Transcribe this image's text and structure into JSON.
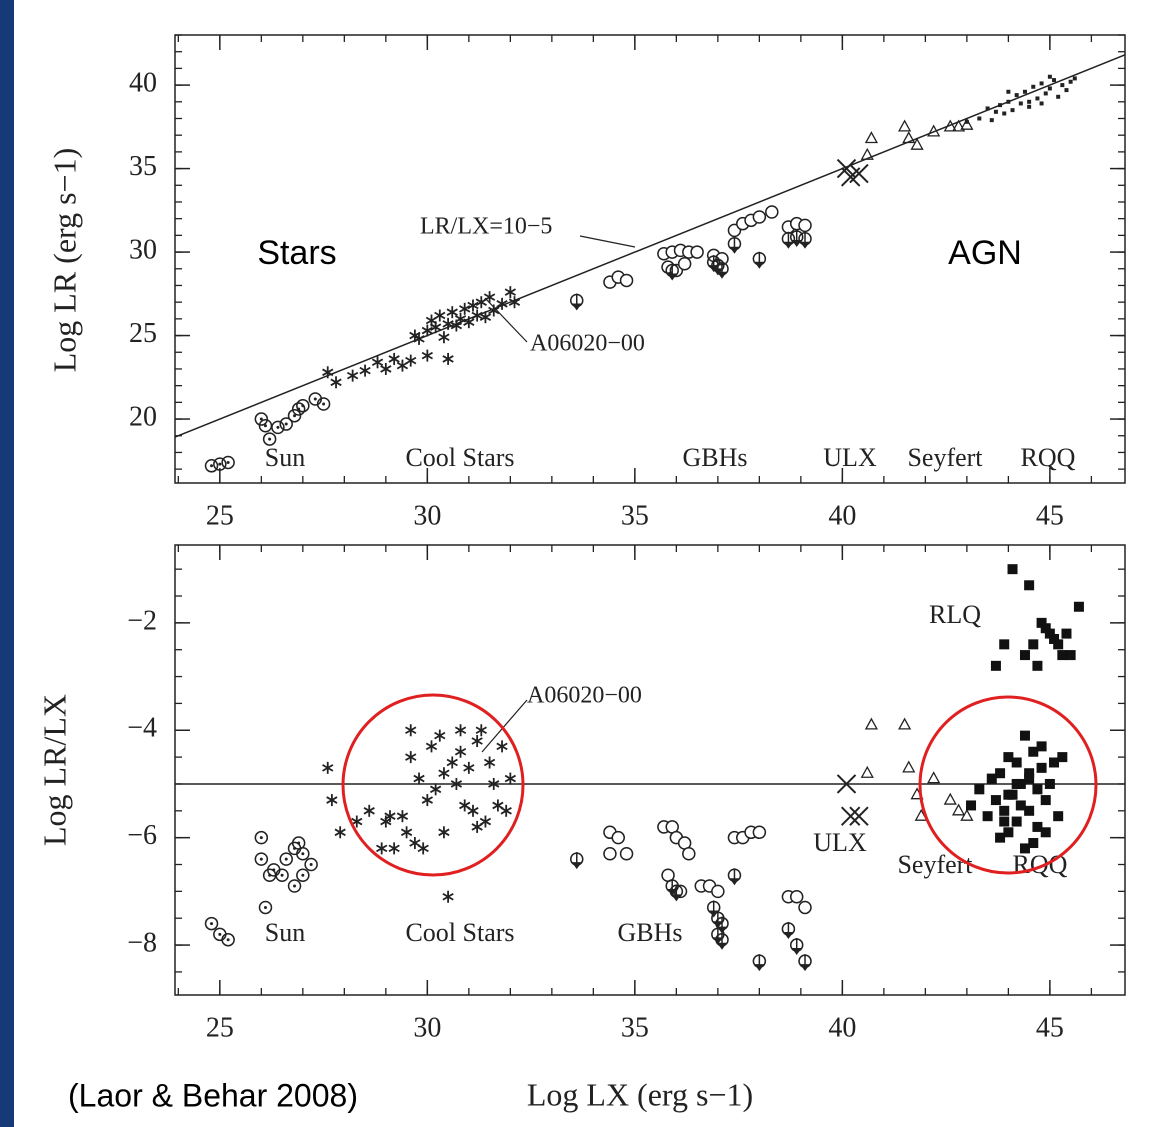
{
  "caption": "(Laor & Behar 2008)",
  "chart_data": [
    {
      "type": "scatter",
      "ylabel": "Log LR (erg s−1)",
      "xlim": [
        23.92,
        46.81
      ],
      "xticks": [
        25,
        30,
        35,
        40,
        45
      ],
      "xminor_step": 1,
      "ylim": [
        16.17,
        43.0
      ],
      "yticks": [
        20,
        25,
        30,
        35,
        40
      ],
      "yminor_step": 1,
      "reference_log_ratio": -5,
      "annotations": [
        "LR/LX=10−5",
        "A06020−00",
        "Stars",
        "AGN"
      ],
      "series": [
        {
          "name": "Sun",
          "marker": "circle-dot",
          "x": [
            24.8,
            25.0,
            25.2,
            26.0,
            26.1,
            26.2,
            26.4,
            26.6,
            26.8,
            26.9,
            27.0,
            27.3,
            27.5
          ],
          "values": [
            17.2,
            17.3,
            17.4,
            20.0,
            19.6,
            18.8,
            19.5,
            19.7,
            20.2,
            20.6,
            20.8,
            21.2,
            20.9
          ]
        },
        {
          "name": "Cool Stars",
          "marker": "asterisk",
          "x": [
            27.6,
            27.8,
            28.2,
            28.5,
            28.8,
            29.0,
            29.2,
            29.4,
            29.6,
            29.8,
            30.0,
            30.1,
            30.2,
            30.3,
            30.4,
            30.5,
            30.6,
            30.7,
            30.8,
            30.9,
            31.0,
            31.1,
            31.2,
            31.3,
            31.4,
            31.5,
            31.6,
            31.8,
            32.0,
            32.1,
            29.7,
            30.0,
            30.5
          ],
          "values": [
            22.8,
            22.2,
            22.6,
            22.9,
            23.4,
            23.0,
            23.6,
            23.2,
            23.5,
            24.8,
            25.3,
            25.9,
            25.5,
            26.2,
            24.9,
            23.6,
            26.4,
            25.6,
            26.0,
            26.6,
            25.8,
            26.8,
            26.2,
            27.0,
            26.1,
            27.3,
            26.5,
            26.9,
            27.6,
            27.0,
            25.0,
            23.8,
            25.7
          ]
        },
        {
          "name": "GBHs",
          "marker": "circle",
          "x": [
            34.4,
            34.6,
            34.8,
            35.7,
            35.9,
            36.1,
            36.3,
            36.5,
            36.9,
            37.1,
            37.4,
            37.6,
            37.8,
            38.0,
            38.3,
            38.7,
            38.9,
            39.1,
            35.8,
            36.0,
            36.2
          ],
          "values": [
            28.2,
            28.5,
            28.3,
            29.9,
            30.0,
            30.1,
            30.0,
            30.0,
            29.8,
            29.6,
            31.3,
            31.7,
            31.9,
            32.1,
            32.4,
            31.5,
            31.7,
            31.6,
            29.1,
            28.9,
            29.3
          ]
        },
        {
          "marker": "circle-limit",
          "x": [
            33.6,
            35.9,
            36.9,
            37.0,
            37.1,
            37.4,
            38.0,
            38.7,
            38.9,
            39.1
          ],
          "values": [
            27.1,
            28.9,
            29.4,
            29.2,
            29.0,
            30.5,
            29.6,
            30.8,
            30.9,
            30.8
          ]
        },
        {
          "name": "ULX",
          "marker": "x",
          "x": [
            40.1,
            40.2,
            40.4
          ],
          "values": [
            35.0,
            34.5,
            34.7
          ]
        },
        {
          "name": "Seyfert",
          "marker": "triangle",
          "x": [
            40.7,
            40.6,
            41.5,
            41.6,
            41.8,
            42.2,
            42.6,
            42.8,
            43.0
          ],
          "values": [
            36.8,
            35.8,
            37.5,
            36.8,
            36.4,
            37.2,
            37.5,
            37.5,
            37.6
          ]
        },
        {
          "name": "RQQ",
          "marker": "small-square",
          "x": [
            43.0,
            43.3,
            43.5,
            43.6,
            43.8,
            43.9,
            44.0,
            44.1,
            44.2,
            44.3,
            44.4,
            44.5,
            44.6,
            44.7,
            44.8,
            44.9,
            45.0,
            45.1,
            45.2,
            45.3,
            45.4,
            45.5,
            45.6,
            44.0,
            44.5,
            44.8,
            45.0,
            43.7
          ],
          "values": [
            37.8,
            38.0,
            38.6,
            37.9,
            38.8,
            38.3,
            39.0,
            38.5,
            39.4,
            38.9,
            39.6,
            39.0,
            39.9,
            39.2,
            40.1,
            39.5,
            39.8,
            40.3,
            39.3,
            40.0,
            39.7,
            40.2,
            40.4,
            39.6,
            38.7,
            38.9,
            40.5,
            38.4
          ]
        }
      ]
    },
    {
      "type": "scatter",
      "ylabel": "Log LR/LX",
      "xlabel": "Log LX (erg s−1)",
      "xlim": [
        23.92,
        46.81
      ],
      "xticks": [
        25,
        30,
        35,
        40,
        45
      ],
      "xminor_step": 1,
      "ylim": [
        -8.93,
        -0.55
      ],
      "yticks": [
        {
          "value": -8,
          "label": "−8"
        },
        {
          "value": -6,
          "label": "−6"
        },
        {
          "value": -4,
          "label": "−4"
        },
        {
          "value": -2,
          "label": "−2"
        }
      ],
      "yminor_step": 0.5,
      "reference_log_ratio": -5,
      "annotations": [
        "A06020−00"
      ],
      "series": [
        {
          "name": "Sun",
          "marker": "circle-dot",
          "x": [
            24.8,
            25.0,
            25.2,
            26.0,
            26.0,
            26.1,
            26.2,
            26.3,
            26.5,
            26.6,
            26.8,
            26.9,
            27.0,
            27.0,
            27.2,
            26.8
          ],
          "values": [
            -7.6,
            -7.8,
            -7.9,
            -6.0,
            -6.4,
            -7.3,
            -6.7,
            -6.6,
            -6.7,
            -6.4,
            -6.9,
            -6.1,
            -6.7,
            -6.3,
            -6.5,
            -6.2
          ]
        },
        {
          "name": "Cool Stars",
          "marker": "asterisk",
          "x": [
            27.6,
            27.7,
            27.9,
            28.3,
            28.6,
            28.9,
            29.0,
            29.2,
            29.4,
            29.5,
            29.6,
            29.7,
            29.8,
            29.9,
            30.0,
            30.1,
            30.2,
            30.3,
            30.4,
            30.5,
            30.6,
            30.7,
            30.8,
            30.9,
            31.0,
            31.1,
            31.2,
            31.3,
            31.4,
            31.5,
            31.6,
            31.7,
            31.8,
            31.9,
            32.0,
            29.1,
            29.6,
            30.4,
            30.8,
            31.2
          ],
          "values": [
            -4.7,
            -5.3,
            -5.9,
            -5.7,
            -5.5,
            -6.2,
            -5.7,
            -6.2,
            -5.6,
            -5.9,
            -4.0,
            -6.1,
            -4.9,
            -6.2,
            -5.3,
            -4.3,
            -5.1,
            -4.1,
            -4.8,
            -7.1,
            -4.6,
            -5.0,
            -4.4,
            -5.4,
            -4.7,
            -5.5,
            -4.2,
            -4.0,
            -5.7,
            -4.6,
            -5.0,
            -5.4,
            -4.3,
            -5.5,
            -4.9,
            -5.6,
            -4.5,
            -5.9,
            -4.0,
            -5.8
          ]
        },
        {
          "name": "GBHs",
          "marker": "circle",
          "x": [
            34.4,
            34.6,
            34.4,
            34.8,
            35.7,
            35.9,
            36.0,
            36.2,
            36.3,
            35.8,
            36.1,
            36.6,
            36.8,
            37.0,
            37.4,
            37.6,
            37.8,
            38.0,
            38.7,
            38.9,
            39.1
          ],
          "values": [
            -5.9,
            -6.0,
            -6.3,
            -6.3,
            -5.8,
            -5.8,
            -6.0,
            -6.1,
            -6.3,
            -6.7,
            -7.0,
            -6.9,
            -6.9,
            -7.0,
            -6.0,
            -6.0,
            -5.9,
            -5.9,
            -7.1,
            -7.1,
            -7.3
          ]
        },
        {
          "marker": "circle-limit",
          "x": [
            33.6,
            35.9,
            36.0,
            36.9,
            37.0,
            37.0,
            37.1,
            37.1,
            37.4,
            38.0,
            38.7,
            38.9,
            39.1
          ],
          "values": [
            -6.4,
            -6.9,
            -7.0,
            -7.3,
            -7.5,
            -7.8,
            -7.6,
            -7.9,
            -6.7,
            -8.3,
            -7.7,
            -8.0,
            -8.3
          ]
        },
        {
          "name": "ULX",
          "marker": "x",
          "x": [
            40.1,
            40.2,
            40.4
          ],
          "values": [
            -5.0,
            -5.6,
            -5.6
          ]
        },
        {
          "name": "Seyfert",
          "marker": "triangle",
          "x": [
            40.7,
            40.6,
            41.5,
            41.6,
            41.8,
            42.2,
            42.6,
            42.8,
            43.0,
            41.9
          ],
          "values": [
            -3.9,
            -4.8,
            -3.9,
            -4.7,
            -5.2,
            -4.9,
            -5.3,
            -5.5,
            -5.6,
            -5.6
          ]
        },
        {
          "name": "RQQ",
          "marker": "square",
          "x": [
            43.1,
            43.3,
            43.5,
            43.6,
            43.7,
            43.8,
            43.8,
            43.9,
            44.0,
            44.0,
            44.1,
            44.2,
            44.2,
            44.3,
            44.4,
            44.4,
            44.5,
            44.5,
            44.6,
            44.7,
            44.7,
            44.8,
            44.9,
            44.9,
            45.0,
            45.1,
            45.2,
            45.3,
            44.0,
            44.3,
            44.6,
            44.8,
            43.9,
            44.2,
            44.5
          ],
          "values": [
            -5.4,
            -5.1,
            -5.6,
            -4.9,
            -5.3,
            -4.8,
            -6.0,
            -5.5,
            -4.5,
            -5.9,
            -5.2,
            -4.6,
            -5.7,
            -5.0,
            -4.1,
            -6.2,
            -4.8,
            -5.5,
            -4.4,
            -5.1,
            -5.8,
            -4.7,
            -5.3,
            -5.9,
            -5.0,
            -4.6,
            -5.6,
            -4.5,
            -5.2,
            -5.4,
            -6.1,
            -4.3,
            -5.7,
            -5.0,
            -4.9
          ]
        },
        {
          "name": "RLQ",
          "marker": "square",
          "x": [
            43.7,
            43.9,
            44.1,
            44.4,
            44.5,
            44.6,
            44.7,
            44.8,
            44.9,
            45.0,
            45.1,
            45.2,
            45.3,
            45.4,
            45.5,
            45.7
          ],
          "values": [
            -2.8,
            -2.4,
            -1.0,
            -2.6,
            -1.3,
            -2.4,
            -2.8,
            -2.0,
            -2.1,
            -2.2,
            -2.3,
            -2.4,
            -2.6,
            -2.2,
            -2.6,
            -1.7
          ]
        }
      ]
    }
  ]
}
